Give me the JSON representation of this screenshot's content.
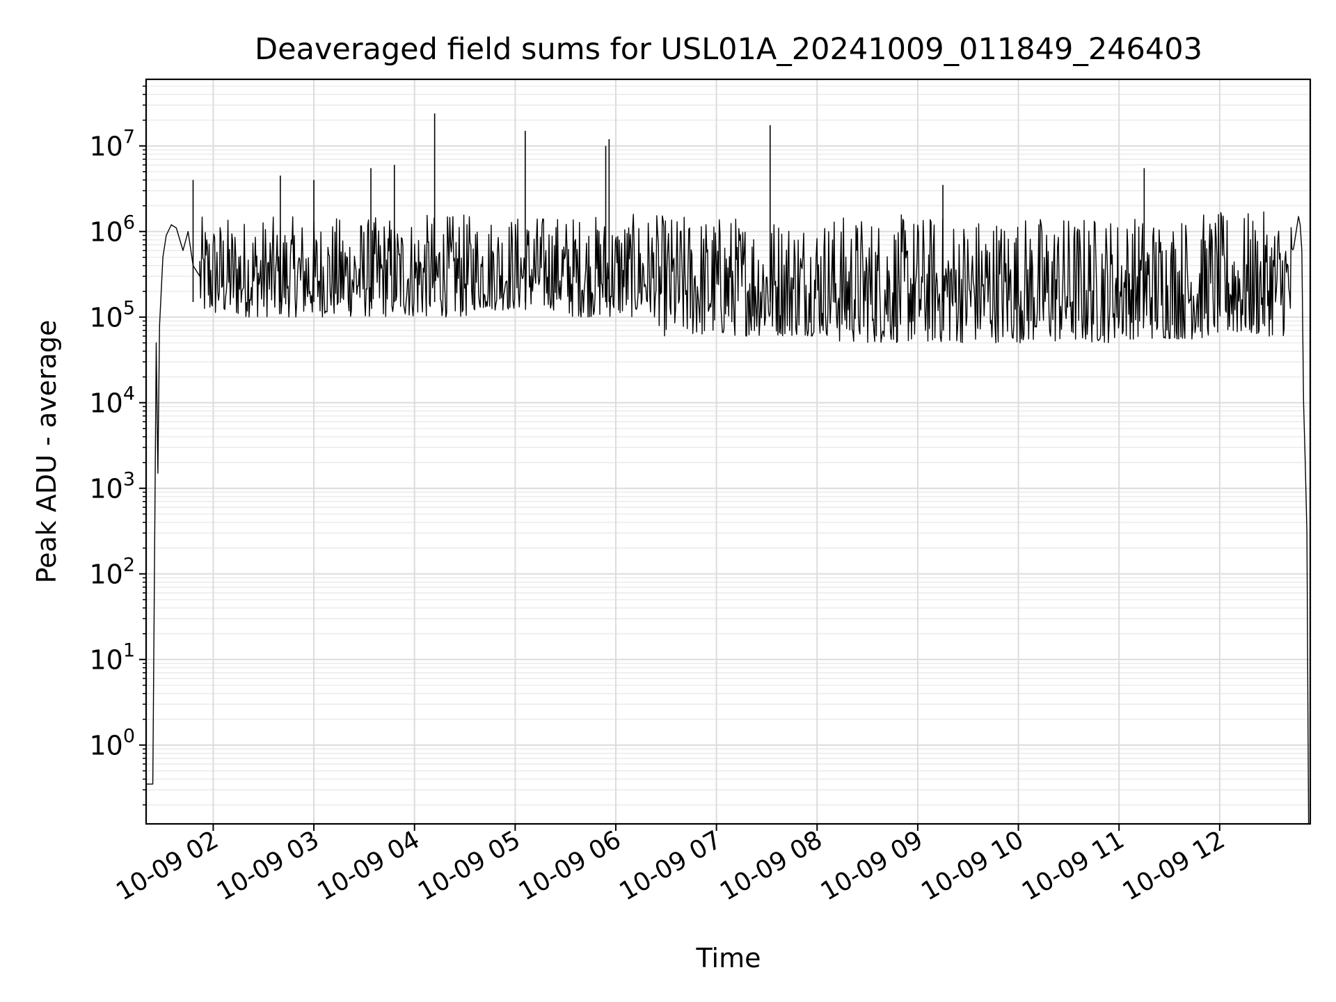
{
  "chart_data": {
    "type": "line",
    "title": "Deaveraged field sums for USL01A_20241009_011849_246403",
    "xlabel": "Time",
    "ylabel": "Peak ADU - average",
    "xaxis_type": "time",
    "xlim": [
      "2024-10-09T01:20",
      "2024-10-09T12:54"
    ],
    "ylim": [
      0.12,
      60000000
    ],
    "yscale": "log",
    "grid": true,
    "legend": "none",
    "x_ticks": [
      "2024-10-09T02:00",
      "2024-10-09T03:00",
      "2024-10-09T04:00",
      "2024-10-09T05:00",
      "2024-10-09T06:00",
      "2024-10-09T07:00",
      "2024-10-09T08:00",
      "2024-10-09T09:00",
      "2024-10-09T10:00",
      "2024-10-09T11:00",
      "2024-10-09T12:00"
    ],
    "x_tick_labels": [
      "10-09 02",
      "10-09 03",
      "10-09 04",
      "10-09 05",
      "10-09 06",
      "10-09 07",
      "10-09 08",
      "10-09 09",
      "10-09 10",
      "10-09 11",
      "10-09 12"
    ],
    "y_ticks": [
      1,
      10,
      100,
      1000,
      10000,
      100000,
      1000000,
      10000000
    ],
    "y_tick_labels": [
      {
        "base": "10",
        "exp": "0"
      },
      {
        "base": "10",
        "exp": "1"
      },
      {
        "base": "10",
        "exp": "2"
      },
      {
        "base": "10",
        "exp": "3"
      },
      {
        "base": "10",
        "exp": "4"
      },
      {
        "base": "10",
        "exp": "5"
      },
      {
        "base": "10",
        "exp": "6"
      },
      {
        "base": "10",
        "exp": "7"
      }
    ],
    "series": [
      {
        "color": "#000000",
        "x": [
          "2024-10-09T01:20",
          "2024-10-09T01:24",
          "2024-10-09T01:26",
          "2024-10-09T01:27",
          "2024-10-09T01:28",
          "2024-10-09T01:29",
          "2024-10-09T01:30",
          "2024-10-09T01:32",
          "2024-10-09T01:35",
          "2024-10-09T01:38",
          "2024-10-09T01:42",
          "2024-10-09T01:45",
          "2024-10-09T01:48",
          "2024-10-09T01:52",
          "2024-10-09T01:55",
          "2024-10-09T02:00",
          "2024-10-09T02:10",
          "2024-10-09T02:20",
          "2024-10-09T02:30",
          "2024-10-09T02:40",
          "2024-10-09T02:50",
          "2024-10-09T03:00",
          "2024-10-09T03:10",
          "2024-10-09T03:20",
          "2024-10-09T03:30",
          "2024-10-09T03:40",
          "2024-10-09T03:50",
          "2024-10-09T04:00",
          "2024-10-09T04:10",
          "2024-10-09T04:20",
          "2024-10-09T04:30",
          "2024-10-09T04:40",
          "2024-10-09T04:50",
          "2024-10-09T05:00",
          "2024-10-09T05:10",
          "2024-10-09T05:20",
          "2024-10-09T05:30",
          "2024-10-09T05:40",
          "2024-10-09T05:50",
          "2024-10-09T06:00",
          "2024-10-09T06:15",
          "2024-10-09T06:30",
          "2024-10-09T06:45",
          "2024-10-09T07:00",
          "2024-10-09T07:15",
          "2024-10-09T07:30",
          "2024-10-09T07:45",
          "2024-10-09T08:00",
          "2024-10-09T08:20",
          "2024-10-09T08:40",
          "2024-10-09T09:00",
          "2024-10-09T09:20",
          "2024-10-09T09:40",
          "2024-10-09T10:00",
          "2024-10-09T10:20",
          "2024-10-09T10:40",
          "2024-10-09T11:00",
          "2024-10-09T11:20",
          "2024-10-09T11:40",
          "2024-10-09T12:00",
          "2024-10-09T12:15",
          "2024-10-09T12:30",
          "2024-10-09T12:40",
          "2024-10-09T12:45",
          "2024-10-09T12:47",
          "2024-10-09T12:48",
          "2024-10-09T12:49",
          "2024-10-09T12:50",
          "2024-10-09T12:51",
          "2024-10-09T12:52",
          "2024-10-09T12:53"
        ],
        "y": [
          0.35,
          0.35,
          50000,
          1500,
          80000,
          200000,
          500000,
          900000,
          1200000,
          1100000,
          600000,
          1000000,
          400000,
          300000,
          600000,
          300000,
          700000,
          900000,
          500000,
          400000,
          600000,
          900000,
          1000000,
          500000,
          300000,
          1500000,
          900000,
          1300000,
          700000,
          500000,
          300000,
          250000,
          180000,
          160000,
          900000,
          1200000,
          1000000,
          800000,
          600000,
          400000,
          300000,
          250000,
          200000,
          180000,
          220000,
          300000,
          150000,
          200000,
          180000,
          150000,
          300000,
          400000,
          350000,
          300000,
          400000,
          300000,
          350000,
          300000,
          400000,
          400000,
          350000,
          500000,
          600000,
          1000000,
          1500000,
          1200000,
          600000,
          10000,
          2000,
          300,
          0.12
        ],
        "spikes": [
          {
            "x": "2024-10-09T04:12",
            "y": 24000000
          },
          {
            "x": "2024-10-09T05:06",
            "y": 15000000
          },
          {
            "x": "2024-10-09T05:56",
            "y": 12000000
          },
          {
            "x": "2024-10-09T05:54",
            "y": 10000000
          },
          {
            "x": "2024-10-09T07:32",
            "y": 17500000
          },
          {
            "x": "2024-10-09T03:48",
            "y": 6000000
          },
          {
            "x": "2024-10-09T03:34",
            "y": 5500000
          },
          {
            "x": "2024-10-09T11:15",
            "y": 5500000
          },
          {
            "x": "2024-10-09T02:40",
            "y": 4500000
          },
          {
            "x": "2024-10-09T09:15",
            "y": 3500000
          },
          {
            "x": "2024-10-09T01:48",
            "y": 4000000
          },
          {
            "x": "2024-10-09T03:00",
            "y": 4000000
          }
        ],
        "band_min": [
          100000,
          100000,
          100000,
          120000,
          100000,
          60000,
          60000,
          50000,
          50000,
          50000,
          55000,
          60000
        ],
        "band_max": [
          1500000,
          1500000,
          1600000,
          1600000,
          1600000,
          1600000,
          1600000,
          1600000,
          1600000,
          1600000,
          1600000,
          1700000
        ]
      }
    ]
  }
}
